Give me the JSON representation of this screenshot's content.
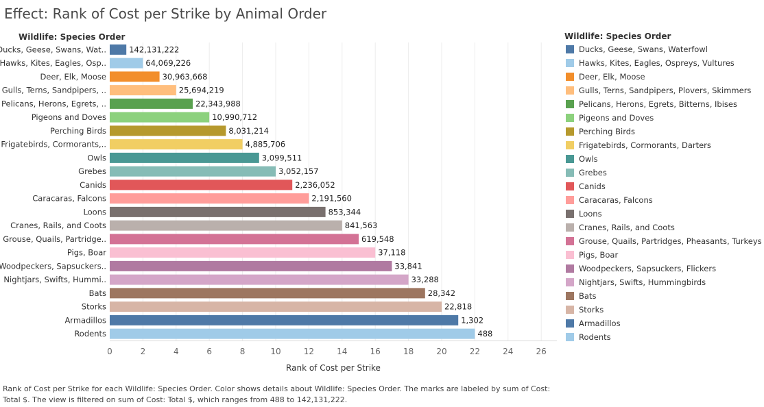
{
  "title": "Effect: Rank of Cost per Strike by Animal Order",
  "row_header": "Wildlife: Species Order",
  "legend_title": "Wildlife: Species Order",
  "caption": "Rank of Cost per Strike for each Wildlife: Species Order.  Color shows details about Wildlife: Species Order.  The marks are labeled by sum of Cost: Total $. The view is filtered on sum of Cost: Total $, which ranges from 488 to 142,131,222.",
  "chart_data": {
    "type": "bar",
    "orientation": "horizontal",
    "xlabel": "Rank of Cost per Strike",
    "xlim": [
      0,
      27
    ],
    "xticks": [
      0,
      2,
      4,
      6,
      8,
      10,
      12,
      14,
      16,
      18,
      20,
      22,
      24,
      26
    ],
    "gridlines": true,
    "legend_position": "right",
    "categories": [
      {
        "label": "Ducks, Geese, Swans, Wat..",
        "legend": "Ducks, Geese, Swans, Waterfowl",
        "rank": 1,
        "value_label": "142,131,222",
        "color": "#4e79a7"
      },
      {
        "label": "Hawks, Kites, Eagles, Osp..",
        "legend": "Hawks, Kites, Eagles, Ospreys, Vultures",
        "rank": 2,
        "value_label": "64,069,226",
        "color": "#a0cbe8"
      },
      {
        "label": "Deer, Elk, Moose",
        "legend": "Deer, Elk, Moose",
        "rank": 3,
        "value_label": "30,963,668",
        "color": "#f28e2b"
      },
      {
        "label": "Gulls, Terns, Sandpipers, ..",
        "legend": "Gulls, Terns, Sandpipers, Plovers, Skimmers",
        "rank": 4,
        "value_label": "25,694,219",
        "color": "#ffbe7d"
      },
      {
        "label": "Pelicans, Herons, Egrets, ..",
        "legend": "Pelicans, Herons, Egrets, Bitterns, Ibises",
        "rank": 5,
        "value_label": "22,343,988",
        "color": "#59a14f"
      },
      {
        "label": "Pigeons and Doves",
        "legend": "Pigeons and Doves",
        "rank": 6,
        "value_label": "10,990,712",
        "color": "#8cd17d"
      },
      {
        "label": "Perching Birds",
        "legend": "Perching Birds",
        "rank": 7,
        "value_label": "8,031,214",
        "color": "#b6992d"
      },
      {
        "label": "Frigatebirds, Cormorants,..",
        "legend": "Frigatebirds, Cormorants, Darters",
        "rank": 8,
        "value_label": "4,885,706",
        "color": "#f1ce63"
      },
      {
        "label": "Owls",
        "legend": "Owls",
        "rank": 9,
        "value_label": "3,099,511",
        "color": "#499894"
      },
      {
        "label": "Grebes",
        "legend": "Grebes",
        "rank": 10,
        "value_label": "3,052,157",
        "color": "#86bcb6"
      },
      {
        "label": "Canids",
        "legend": "Canids",
        "rank": 11,
        "value_label": "2,236,052",
        "color": "#e15759"
      },
      {
        "label": "Caracaras, Falcons",
        "legend": "Caracaras, Falcons",
        "rank": 12,
        "value_label": "2,191,560",
        "color": "#ff9d9a"
      },
      {
        "label": "Loons",
        "legend": "Loons",
        "rank": 13,
        "value_label": "853,344",
        "color": "#79706e"
      },
      {
        "label": "Cranes, Rails, and Coots",
        "legend": "Cranes, Rails, and Coots",
        "rank": 14,
        "value_label": "841,563",
        "color": "#bab0ac"
      },
      {
        "label": "Grouse, Quails, Partridge..",
        "legend": "Grouse, Quails, Partridges, Pheasants, Turkeys",
        "rank": 15,
        "value_label": "619,548",
        "color": "#d37295"
      },
      {
        "label": "Pigs, Boar",
        "legend": "Pigs, Boar",
        "rank": 16,
        "value_label": "37,118",
        "color": "#fabfd2"
      },
      {
        "label": "Woodpeckers, Sapsuckers..",
        "legend": "Woodpeckers, Sapsuckers, Flickers",
        "rank": 17,
        "value_label": "33,841",
        "color": "#b07aa1"
      },
      {
        "label": "Nightjars, Swifts, Hummi..",
        "legend": "Nightjars, Swifts, Hummingbirds",
        "rank": 18,
        "value_label": "33,288",
        "color": "#d4a6c8"
      },
      {
        "label": "Bats",
        "legend": "Bats",
        "rank": 19,
        "value_label": "28,342",
        "color": "#9d7660"
      },
      {
        "label": "Storks",
        "legend": "Storks",
        "rank": 20,
        "value_label": "22,818",
        "color": "#d7b5a6"
      },
      {
        "label": "Armadillos",
        "legend": "Armadillos",
        "rank": 21,
        "value_label": "1,302",
        "color": "#4e79a7"
      },
      {
        "label": "Rodents",
        "legend": "Rodents",
        "rank": 22,
        "value_label": "488",
        "color": "#a0cbe8"
      }
    ]
  }
}
